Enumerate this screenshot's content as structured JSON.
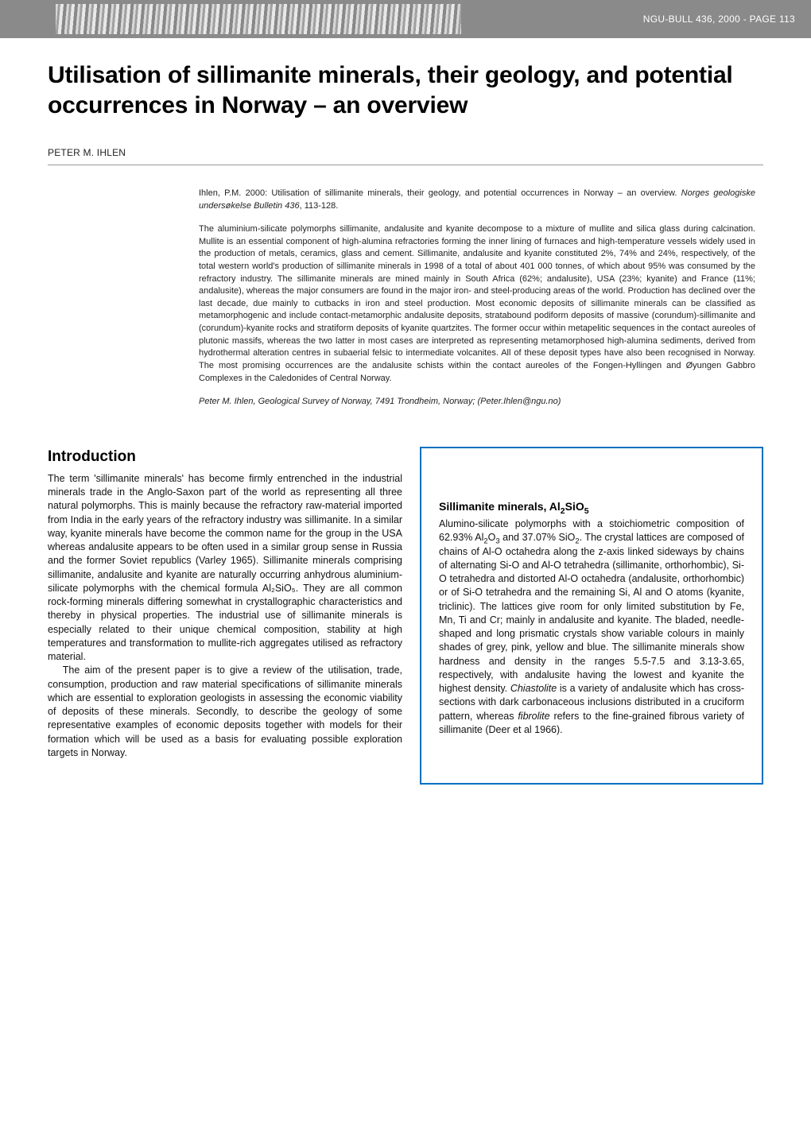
{
  "page_meta": "NGU-BULL 436, 2000 - PAGE 113",
  "title": "Utilisation of sillimanite minerals, their geology, and potential occurrences in Norway – an overview",
  "author": "PETER M. IHLEN",
  "abstract": {
    "citation_text": "Ihlen, P.M. 2000: Utilisation of sillimanite minerals, their geology, and potential occurrences in Norway – an overview. ",
    "citation_journal": "Norges geologiske undersøkelse Bulletin 436",
    "citation_pages": ", 113-128.",
    "body": "The aluminium-silicate polymorphs sillimanite, andalusite and kyanite decompose to a mixture of mullite and silica glass during calcination. Mullite is an essential component of high-alumina refractories forming the inner lining of furnaces and high-temperature vessels widely used in the production of metals, ceramics, glass and cement. Sillimanite, andalusite and kyanite constituted 2%, 74% and 24%, respectively, of the total western world's production of sillimanite minerals in 1998 of a total of about 401 000 tonnes, of which about 95% was consumed by the refractory industry. The sillimanite minerals are mined mainly in South Africa (62%; andalusite), USA (23%; kyanite) and France (11%; andalusite), whereas the major consumers are found in the major iron- and steel-producing areas of the world. Production has declined over the last decade, due mainly to cutbacks in iron and steel production. Most economic deposits of sillimanite minerals can be classified as metamorphogenic and include contact-metamorphic andalusite deposits, stratabound podiform deposits of massive (corundum)-sillimanite and (corundum)-kyanite rocks and stratiform deposits of kyanite quartzites. The former occur within metapelitic sequences in the contact aureoles of plutonic massifs, whereas the two latter in most cases are interpreted as representing metamorphosed high-alumina sediments, derived from hydrothermal alteration centres in subaerial felsic to intermediate volcanites. All of these deposit types have also been recognised in Norway. The most promising occurrences are the andalusite schists within the contact aureoles of the Fongen-Hyllingen and Øyungen Gabbro Complexes in the Caledonides of Central Norway.",
    "affiliation": "Peter M. Ihlen, Geological Survey of Norway, 7491 Trondheim, Norway; (Peter.Ihlen@ngu.no)"
  },
  "intro": {
    "heading": "Introduction",
    "p1": "The term 'sillimanite minerals' has become firmly entrenched in the industrial minerals trade in the Anglo-Saxon part of the world as representing all three natural polymorphs. This is mainly because the refractory raw-material imported from India in the early years of the refractory industry was sillimanite. In a similar way, kyanite minerals have become the common name for the group in the USA whereas andalusite appears to be often used in a similar group sense in Russia and the former Soviet republics (Varley 1965). Sillimanite minerals comprising sillimanite, andalusite and kyanite are naturally occurring anhydrous aluminium-silicate polymorphs with the chemical formula Al₂SiO₅. They are all common rock-forming minerals differing somewhat in crystallographic characteristics and thereby in physical properties. The industrial use of sillimanite minerals is especially related to their unique chemical composition, stability at high temperatures and transformation to mullite-rich aggregates utilised as refractory material.",
    "p2": "The aim of the present paper is to give a review of the utilisation, trade, consumption, production and raw material specifications of sillimanite minerals which are essential to exploration geologists in assessing the economic viability of deposits of these minerals. Secondly, to describe the geology of some representative examples of economic deposits together with models for their formation which will be used as a basis for evaluating possible exploration targets in Norway."
  },
  "sidebar": {
    "heading_plain": "Sillimanite minerals, Al",
    "heading_formula_sub1": "2",
    "heading_formula_mid": "SiO",
    "heading_formula_sub2": "5",
    "body_part1": "Alumino-silicate polymorphs with a stoichiometric composition of 62.93% Al",
    "body_sub1": "2",
    "body_mid1": "O",
    "body_sub2": "3",
    "body_mid2": " and 37.07% SiO",
    "body_sub3": "2",
    "body_part2": ". The crystal lattices are composed of chains of Al-O octahedra along the z-axis linked sideways by chains of alternating Si-O and Al-O tetrahedra (sillimanite, orthorhombic), Si-O tetrahedra and distorted Al-O octahedra (andalusite, orthorhombic) or of Si-O tetrahedra and the remaining Si, Al and O atoms (kyanite, triclinic). The lattices give room for only limited substitution by Fe, Mn, Ti and Cr; mainly in andalusite and kyanite. The bladed, needle-shaped and long prismatic crystals show variable colours in mainly shades of grey, pink, yellow and blue. The sillimanite minerals show hardness and density in the ranges 5.5-7.5 and 3.13-3.65, respectively, with andalusite having the lowest and kyanite the highest density. ",
    "chiastolite": "Chiastolite",
    "body_part3": " is a variety of andalusite which has cross-sections with dark carbonaceous inclusions distributed in a cruciform pattern, whereas ",
    "fibrolite": "fibrolite",
    "body_part4": " refers to the fine-grained fibrous variety of sillimanite (Deer et al 1966)."
  },
  "colors": {
    "header_bg": "#8a8a8a",
    "header_text": "#ffffff",
    "border_blue": "#0070c0",
    "body_text": "#111111",
    "rule": "#999999"
  }
}
